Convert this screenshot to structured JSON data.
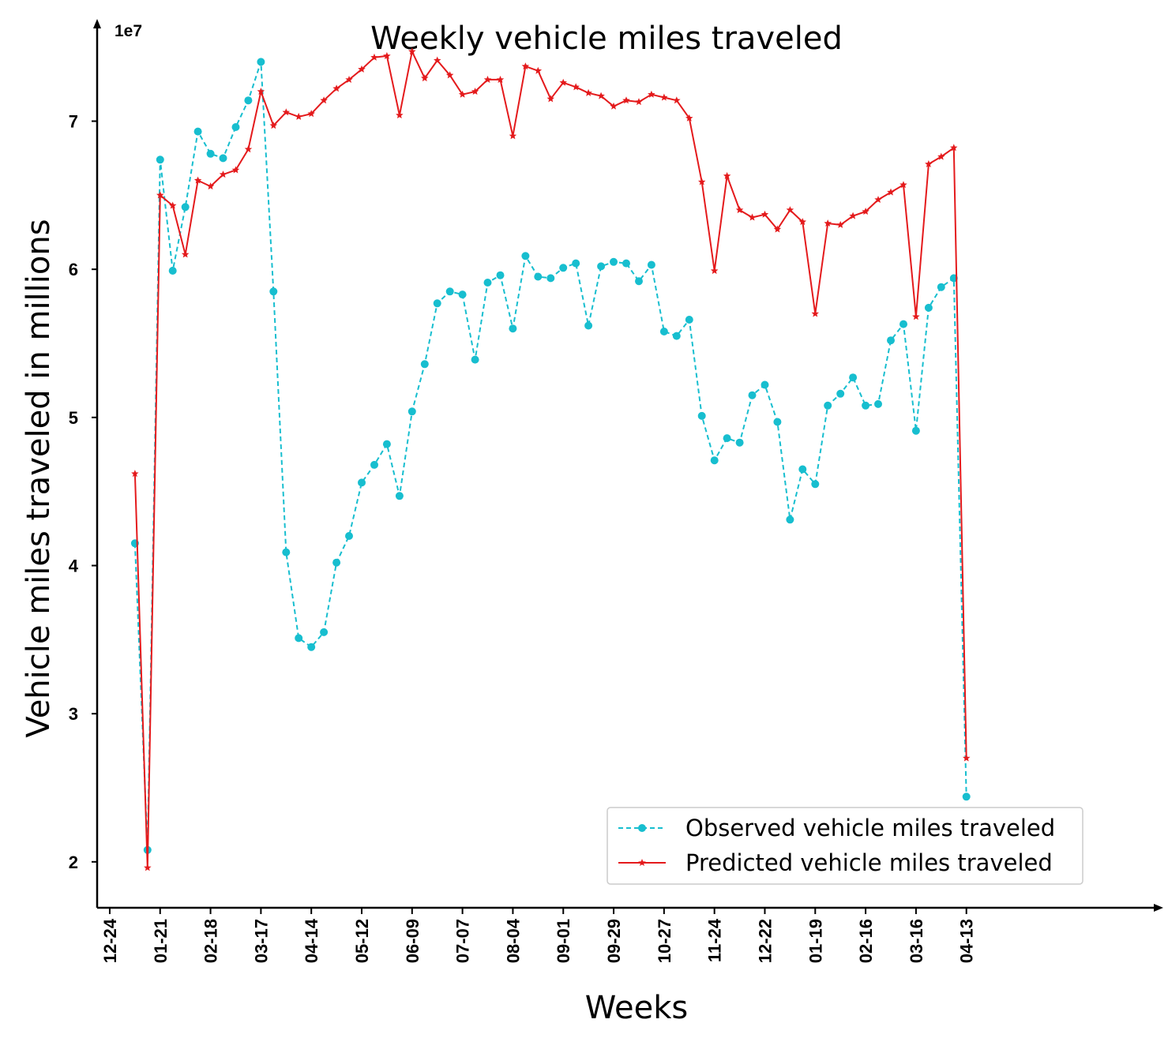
{
  "chart_data": {
    "type": "line",
    "title": "Weekly vehicle miles traveled",
    "xlabel": "Weeks",
    "ylabel": "Vehicle miles traveled in millions",
    "y_offset_label": "1e7",
    "y_ticks": [
      2,
      3,
      4,
      5,
      6,
      7
    ],
    "y_ticks_scaled_1e7": true,
    "ylim": [
      16900000.0,
      76900000.0
    ],
    "x_week_index_range": [
      -2,
      82
    ],
    "x_ticks": [
      {
        "label": "12-24",
        "week": -1
      },
      {
        "label": "01-21",
        "week": 3
      },
      {
        "label": "02-18",
        "week": 7
      },
      {
        "label": "03-17",
        "week": 11
      },
      {
        "label": "04-14",
        "week": 15
      },
      {
        "label": "05-12",
        "week": 19
      },
      {
        "label": "06-09",
        "week": 23
      },
      {
        "label": "07-07",
        "week": 27
      },
      {
        "label": "08-04",
        "week": 31
      },
      {
        "label": "09-01",
        "week": 35
      },
      {
        "label": "09-29",
        "week": 39
      },
      {
        "label": "10-27",
        "week": 43
      },
      {
        "label": "11-24",
        "week": 47
      },
      {
        "label": "12-22",
        "week": 51
      },
      {
        "label": "01-19",
        "week": 55
      },
      {
        "label": "02-16",
        "week": 59
      },
      {
        "label": "03-16",
        "week": 63
      },
      {
        "label": "04-13",
        "week": 67
      }
    ],
    "x_weeks": [
      1,
      2,
      3,
      4,
      5,
      6,
      7,
      8,
      9,
      10,
      11,
      12,
      13,
      14,
      15,
      16,
      17,
      18,
      19,
      20,
      21,
      22,
      23,
      24,
      25,
      26,
      27,
      28,
      29,
      30,
      31,
      32,
      33,
      34,
      35,
      36,
      37,
      38,
      39,
      40,
      41,
      42,
      43,
      44,
      45,
      46,
      47,
      48,
      49,
      50,
      51,
      52,
      53,
      54,
      55,
      56,
      57,
      58,
      59,
      60,
      61,
      62,
      63,
      64,
      65,
      66,
      67
    ],
    "series": [
      {
        "name": "Observed vehicle miles traveled",
        "color": "#17becf",
        "linestyle": "dashed",
        "marker": "circle",
        "values": [
          41500000,
          20800000,
          67400000,
          59900000,
          64200000,
          69300000,
          67800000,
          67500000,
          69600000,
          71400000,
          74000000,
          58500000,
          40900000,
          35100000,
          34500000,
          35500000,
          40200000,
          42000000,
          45600000,
          46800000,
          48200000,
          44700000,
          50400000,
          53600000,
          57700000,
          58500000,
          58300000,
          53900000,
          59100000,
          59600000,
          56000000,
          60900000,
          59500000,
          59400000,
          60100000,
          60400000,
          56200000,
          60200000,
          60500000,
          60400000,
          59200000,
          60300000,
          55800000,
          55500000,
          56600000,
          50100000,
          47100000,
          48600000,
          48300000,
          51500000,
          52200000,
          49700000,
          43100000,
          46500000,
          45500000,
          50800000,
          51600000,
          52700000,
          50800000,
          50900000,
          55200000,
          56300000,
          49100000,
          57400000,
          58800000,
          59400000,
          24400000
        ]
      },
      {
        "name": "Predicted vehicle miles traveled",
        "color": "#e41a1c",
        "linestyle": "solid",
        "marker": "star",
        "values": [
          46200000,
          19600000,
          65000000,
          64300000,
          61000000,
          66000000,
          65600000,
          66400000,
          66700000,
          68100000,
          72000000,
          69700000,
          70600000,
          70300000,
          70500000,
          71400000,
          72200000,
          72800000,
          73500000,
          74300000,
          74400000,
          70400000,
          74700000,
          72900000,
          74100000,
          73100000,
          71800000,
          72000000,
          72800000,
          72800000,
          69000000,
          73700000,
          73400000,
          71500000,
          72600000,
          72300000,
          71900000,
          71700000,
          71000000,
          71400000,
          71300000,
          71800000,
          71600000,
          71400000,
          70200000,
          65900000,
          59900000,
          66300000,
          64000000,
          63500000,
          63700000,
          62700000,
          64000000,
          63200000,
          57000000,
          63100000,
          63000000,
          63600000,
          63900000,
          64700000,
          65200000,
          65700000,
          56800000,
          67100000,
          67600000,
          68200000,
          27000000
        ]
      }
    ],
    "legend": "lower-right",
    "grid": false
  }
}
